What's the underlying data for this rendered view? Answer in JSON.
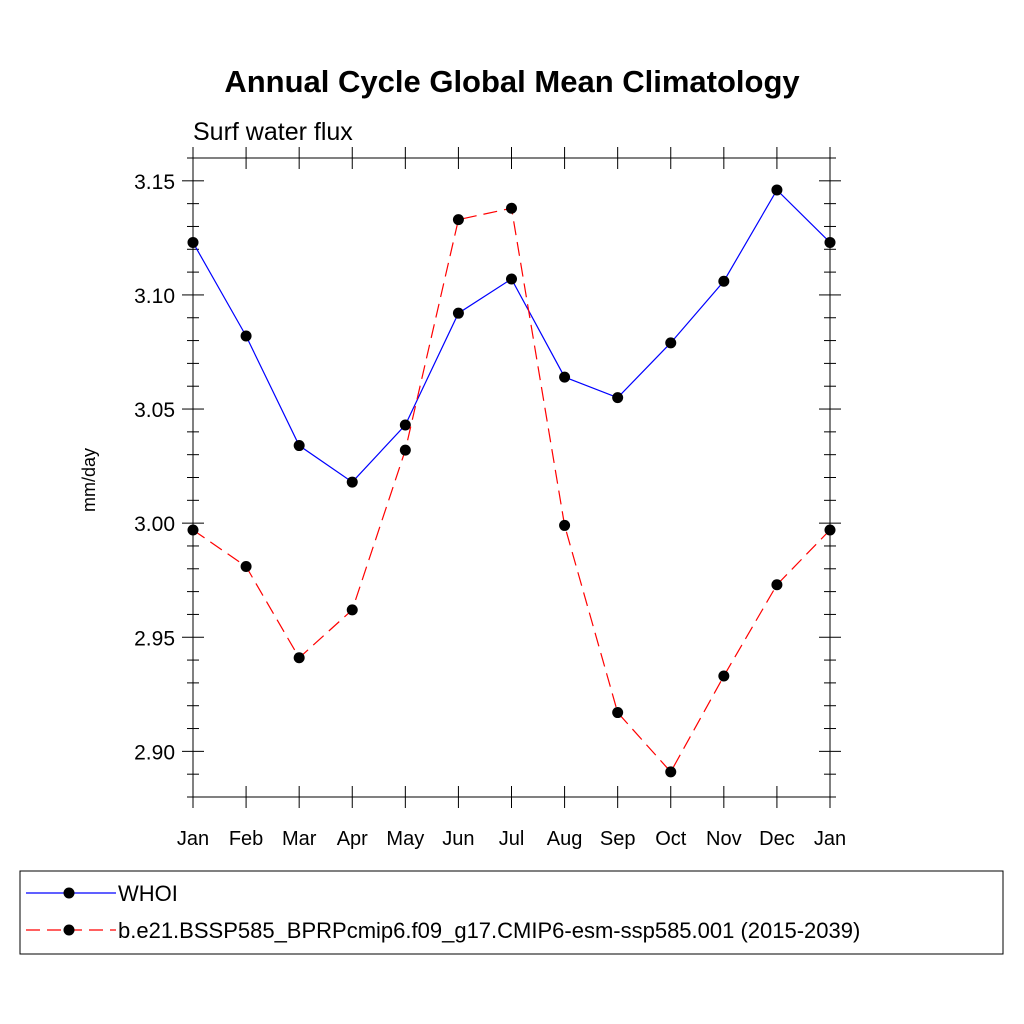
{
  "chart_data": {
    "type": "line",
    "title": "Annual Cycle Global Mean Climatology",
    "subtitle": "Surf water flux",
    "ylabel": "mm/day",
    "xlabel": "",
    "categories": [
      "Jan",
      "Feb",
      "Mar",
      "Apr",
      "May",
      "Jun",
      "Jul",
      "Aug",
      "Sep",
      "Oct",
      "Nov",
      "Dec",
      "Jan"
    ],
    "ylim": [
      2.88,
      3.16
    ],
    "yticks": [
      "2.90",
      "2.95",
      "3.00",
      "3.05",
      "3.10",
      "3.15"
    ],
    "ytick_values": [
      2.9,
      2.95,
      3.0,
      3.05,
      3.1,
      3.15
    ],
    "series": [
      {
        "name": "WHOI",
        "color": "#0000ff",
        "dash": "solid",
        "values": [
          3.123,
          3.082,
          3.034,
          3.018,
          3.043,
          3.092,
          3.107,
          3.064,
          3.055,
          3.079,
          3.106,
          3.146,
          3.123
        ]
      },
      {
        "name": "b.e21.BSSP585_BPRPcmip6.f09_g17.CMIP6-esm-ssp585.001 (2015-2039)",
        "color": "#ff0000",
        "dash": "dashed",
        "values": [
          2.997,
          2.981,
          2.941,
          2.962,
          3.032,
          3.133,
          3.138,
          2.999,
          2.917,
          2.891,
          2.933,
          2.973,
          2.997
        ]
      }
    ],
    "legend_position": "bottom"
  }
}
